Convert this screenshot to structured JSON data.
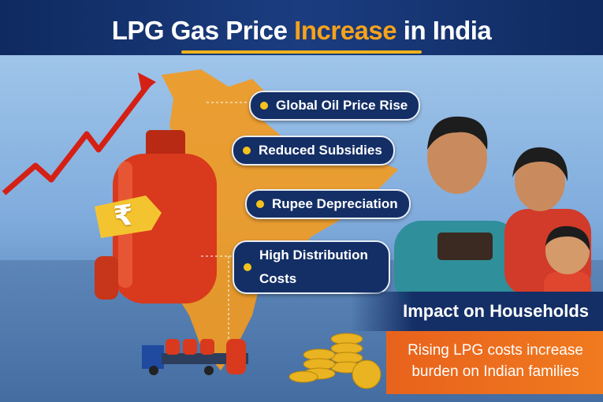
{
  "header": {
    "title_before": "LPG Gas Price",
    "title_highlight": "Increase",
    "title_after": "in India"
  },
  "tag_symbol": "₹",
  "causes": [
    "Global Oil Price Rise",
    "Reduced Subsidies",
    "Rupee Depreciation",
    "High Distribution Costs"
  ],
  "impact": {
    "title": "Impact on Households",
    "text": "Rising LPG costs increase burden on Indian families"
  }
}
